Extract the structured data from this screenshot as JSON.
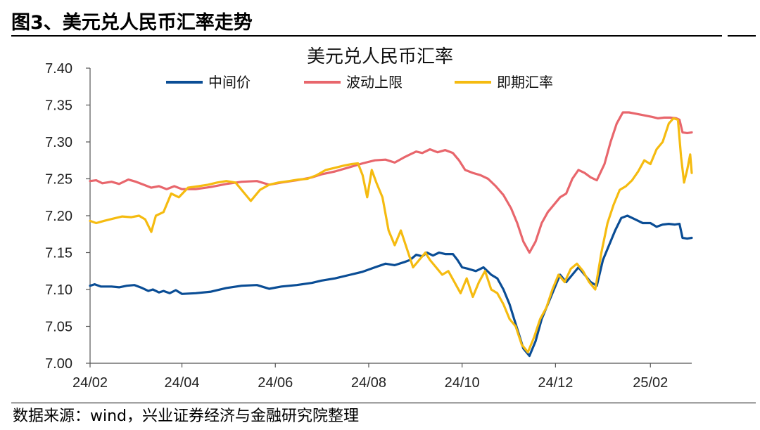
{
  "figure": {
    "title": "图3、美元兑人民币汇率走势",
    "source": "数据来源：wind，兴业证券经济与金融研究院整理"
  },
  "colors": {
    "midpoint": "#0a4d95",
    "band_upper": "#e8666c",
    "spot": "#f5bb10",
    "axis": "#555555"
  },
  "chart_data": {
    "type": "line",
    "title": "美元兑人民币汇率",
    "xlabel": "",
    "ylabel": "",
    "ylim": [
      7.0,
      7.4
    ],
    "yticks": [
      "7.40",
      "7.35",
      "7.30",
      "7.25",
      "7.20",
      "7.15",
      "7.10",
      "7.05",
      "7.00"
    ],
    "xticks": [
      "24/02",
      "24/04",
      "24/06",
      "24/08",
      "24/10",
      "24/12",
      "25/02"
    ],
    "xtick_dates": [
      "2024-02-01",
      "2024-04-01",
      "2024-06-01",
      "2024-08-01",
      "2024-10-01",
      "2024-12-01",
      "2025-02-01"
    ],
    "xrange": [
      "2024-02-01",
      "2025-02-28"
    ],
    "grid": false,
    "legend_position": "top",
    "series": [
      {
        "name": "中间价",
        "color_key": "midpoint",
        "points": [
          [
            "2024-02-01",
            7.105
          ],
          [
            "2024-02-04",
            7.107
          ],
          [
            "2024-02-08",
            7.104
          ],
          [
            "2024-02-15",
            7.104
          ],
          [
            "2024-02-20",
            7.103
          ],
          [
            "2024-02-25",
            7.105
          ],
          [
            "2024-03-01",
            7.106
          ],
          [
            "2024-03-06",
            7.102
          ],
          [
            "2024-03-10",
            7.098
          ],
          [
            "2024-03-13",
            7.1
          ],
          [
            "2024-03-17",
            7.096
          ],
          [
            "2024-03-20",
            7.098
          ],
          [
            "2024-03-24",
            7.095
          ],
          [
            "2024-03-28",
            7.099
          ],
          [
            "2024-04-01",
            7.094
          ],
          [
            "2024-04-10",
            7.095
          ],
          [
            "2024-04-20",
            7.097
          ],
          [
            "2024-04-30",
            7.102
          ],
          [
            "2024-05-10",
            7.105
          ],
          [
            "2024-05-20",
            7.106
          ],
          [
            "2024-05-28",
            7.101
          ],
          [
            "2024-06-05",
            7.104
          ],
          [
            "2024-06-15",
            7.106
          ],
          [
            "2024-06-25",
            7.109
          ],
          [
            "2024-07-01",
            7.112
          ],
          [
            "2024-07-10",
            7.115
          ],
          [
            "2024-07-20",
            7.12
          ],
          [
            "2024-07-28",
            7.124
          ],
          [
            "2024-08-05",
            7.13
          ],
          [
            "2024-08-12",
            7.135
          ],
          [
            "2024-08-18",
            7.133
          ],
          [
            "2024-08-24",
            7.137
          ],
          [
            "2024-08-28",
            7.14
          ],
          [
            "2024-09-01",
            7.147
          ],
          [
            "2024-09-05",
            7.145
          ],
          [
            "2024-09-08",
            7.15
          ],
          [
            "2024-09-12",
            7.146
          ],
          [
            "2024-09-16",
            7.15
          ],
          [
            "2024-09-20",
            7.148
          ],
          [
            "2024-09-25",
            7.148
          ],
          [
            "2024-09-28",
            7.14
          ],
          [
            "2024-10-01",
            7.13
          ],
          [
            "2024-10-05",
            7.128
          ],
          [
            "2024-10-10",
            7.125
          ],
          [
            "2024-10-15",
            7.13
          ],
          [
            "2024-10-20",
            7.12
          ],
          [
            "2024-10-24",
            7.115
          ],
          [
            "2024-10-28",
            7.1
          ],
          [
            "2024-11-01",
            7.08
          ],
          [
            "2024-11-04",
            7.06
          ],
          [
            "2024-11-07",
            7.04
          ],
          [
            "2024-11-10",
            7.02
          ],
          [
            "2024-11-14",
            7.01
          ],
          [
            "2024-11-18",
            7.03
          ],
          [
            "2024-11-22",
            7.06
          ],
          [
            "2024-11-26",
            7.08
          ],
          [
            "2024-11-30",
            7.1
          ],
          [
            "2024-12-04",
            7.12
          ],
          [
            "2024-12-08",
            7.11
          ],
          [
            "2024-12-12",
            7.12
          ],
          [
            "2024-12-16",
            7.13
          ],
          [
            "2024-12-20",
            7.12
          ],
          [
            "2024-12-24",
            7.11
          ],
          [
            "2024-12-28",
            7.105
          ],
          [
            "2025-01-01",
            7.14
          ],
          [
            "2025-01-05",
            7.16
          ],
          [
            "2025-01-09",
            7.18
          ],
          [
            "2025-01-13",
            7.197
          ],
          [
            "2025-01-17",
            7.2
          ],
          [
            "2025-01-22",
            7.195
          ],
          [
            "2025-01-27",
            7.19
          ],
          [
            "2025-02-01",
            7.19
          ],
          [
            "2025-02-05",
            7.185
          ],
          [
            "2025-02-09",
            7.188
          ],
          [
            "2025-02-13",
            7.189
          ],
          [
            "2025-02-17",
            7.188
          ],
          [
            "2025-02-20",
            7.189
          ],
          [
            "2025-02-22",
            7.17
          ],
          [
            "2025-02-25",
            7.169
          ],
          [
            "2025-02-28",
            7.17
          ]
        ]
      },
      {
        "name": "波动上限",
        "color_key": "band_upper",
        "points": [
          [
            "2024-02-01",
            7.247
          ],
          [
            "2024-02-05",
            7.248
          ],
          [
            "2024-02-09",
            7.244
          ],
          [
            "2024-02-15",
            7.246
          ],
          [
            "2024-02-20",
            7.243
          ],
          [
            "2024-02-26",
            7.249
          ],
          [
            "2024-03-02",
            7.246
          ],
          [
            "2024-03-07",
            7.242
          ],
          [
            "2024-03-12",
            7.238
          ],
          [
            "2024-03-17",
            7.24
          ],
          [
            "2024-03-22",
            7.236
          ],
          [
            "2024-03-27",
            7.24
          ],
          [
            "2024-04-01",
            7.236
          ],
          [
            "2024-04-10",
            7.236
          ],
          [
            "2024-04-20",
            7.239
          ],
          [
            "2024-04-30",
            7.243
          ],
          [
            "2024-05-10",
            7.246
          ],
          [
            "2024-05-20",
            7.247
          ],
          [
            "2024-05-28",
            7.242
          ],
          [
            "2024-06-05",
            7.245
          ],
          [
            "2024-06-15",
            7.248
          ],
          [
            "2024-06-25",
            7.252
          ],
          [
            "2024-07-01",
            7.256
          ],
          [
            "2024-07-10",
            7.26
          ],
          [
            "2024-07-20",
            7.266
          ],
          [
            "2024-07-28",
            7.271
          ],
          [
            "2024-08-05",
            7.275
          ],
          [
            "2024-08-12",
            7.276
          ],
          [
            "2024-08-18",
            7.272
          ],
          [
            "2024-08-24",
            7.279
          ],
          [
            "2024-08-28",
            7.283
          ],
          [
            "2024-09-01",
            7.287
          ],
          [
            "2024-09-05",
            7.285
          ],
          [
            "2024-09-10",
            7.29
          ],
          [
            "2024-09-15",
            7.286
          ],
          [
            "2024-09-20",
            7.289
          ],
          [
            "2024-09-25",
            7.285
          ],
          [
            "2024-09-29",
            7.275
          ],
          [
            "2024-10-03",
            7.262
          ],
          [
            "2024-10-08",
            7.258
          ],
          [
            "2024-10-13",
            7.255
          ],
          [
            "2024-10-18",
            7.25
          ],
          [
            "2024-10-23",
            7.24
          ],
          [
            "2024-10-28",
            7.228
          ],
          [
            "2024-11-02",
            7.21
          ],
          [
            "2024-11-06",
            7.19
          ],
          [
            "2024-11-10",
            7.165
          ],
          [
            "2024-11-14",
            7.15
          ],
          [
            "2024-11-18",
            7.165
          ],
          [
            "2024-11-22",
            7.19
          ],
          [
            "2024-11-26",
            7.205
          ],
          [
            "2024-11-30",
            7.215
          ],
          [
            "2024-12-04",
            7.225
          ],
          [
            "2024-12-08",
            7.23
          ],
          [
            "2024-12-12",
            7.25
          ],
          [
            "2024-12-16",
            7.262
          ],
          [
            "2024-12-20",
            7.258
          ],
          [
            "2024-12-24",
            7.252
          ],
          [
            "2024-12-28",
            7.248
          ],
          [
            "2025-01-02",
            7.27
          ],
          [
            "2025-01-06",
            7.3
          ],
          [
            "2025-01-10",
            7.325
          ],
          [
            "2025-01-14",
            7.34
          ],
          [
            "2025-01-18",
            7.34
          ],
          [
            "2025-01-23",
            7.338
          ],
          [
            "2025-01-28",
            7.336
          ],
          [
            "2025-02-02",
            7.334
          ],
          [
            "2025-02-06",
            7.332
          ],
          [
            "2025-02-10",
            7.333
          ],
          [
            "2025-02-14",
            7.333
          ],
          [
            "2025-02-18",
            7.332
          ],
          [
            "2025-02-20",
            7.33
          ],
          [
            "2025-02-22",
            7.313
          ],
          [
            "2025-02-25",
            7.312
          ],
          [
            "2025-02-28",
            7.313
          ]
        ]
      },
      {
        "name": "即期汇率",
        "color_key": "spot",
        "points": [
          [
            "2024-02-01",
            7.193
          ],
          [
            "2024-02-05",
            7.19
          ],
          [
            "2024-02-10",
            7.193
          ],
          [
            "2024-02-16",
            7.196
          ],
          [
            "2024-02-22",
            7.199
          ],
          [
            "2024-02-28",
            7.198
          ],
          [
            "2024-03-04",
            7.2
          ],
          [
            "2024-03-08",
            7.195
          ],
          [
            "2024-03-12",
            7.178
          ],
          [
            "2024-03-15",
            7.2
          ],
          [
            "2024-03-20",
            7.205
          ],
          [
            "2024-03-25",
            7.23
          ],
          [
            "2024-03-30",
            7.225
          ],
          [
            "2024-04-05",
            7.238
          ],
          [
            "2024-04-12",
            7.24
          ],
          [
            "2024-04-18",
            7.242
          ],
          [
            "2024-04-24",
            7.245
          ],
          [
            "2024-04-30",
            7.247
          ],
          [
            "2024-05-06",
            7.245
          ],
          [
            "2024-05-12",
            7.23
          ],
          [
            "2024-05-16",
            7.22
          ],
          [
            "2024-05-22",
            7.235
          ],
          [
            "2024-05-28",
            7.242
          ],
          [
            "2024-06-03",
            7.245
          ],
          [
            "2024-06-10",
            7.247
          ],
          [
            "2024-06-16",
            7.249
          ],
          [
            "2024-06-22",
            7.25
          ],
          [
            "2024-06-28",
            7.255
          ],
          [
            "2024-07-04",
            7.262
          ],
          [
            "2024-07-10",
            7.265
          ],
          [
            "2024-07-16",
            7.268
          ],
          [
            "2024-07-21",
            7.27
          ],
          [
            "2024-07-25",
            7.271
          ],
          [
            "2024-07-28",
            7.255
          ],
          [
            "2024-07-31",
            7.225
          ],
          [
            "2024-08-03",
            7.262
          ],
          [
            "2024-08-06",
            7.245
          ],
          [
            "2024-08-10",
            7.225
          ],
          [
            "2024-08-14",
            7.18
          ],
          [
            "2024-08-18",
            7.16
          ],
          [
            "2024-08-22",
            7.18
          ],
          [
            "2024-08-26",
            7.155
          ],
          [
            "2024-08-30",
            7.13
          ],
          [
            "2024-09-03",
            7.14
          ],
          [
            "2024-09-07",
            7.15
          ],
          [
            "2024-09-10",
            7.14
          ],
          [
            "2024-09-14",
            7.13
          ],
          [
            "2024-09-18",
            7.12
          ],
          [
            "2024-09-22",
            7.125
          ],
          [
            "2024-09-26",
            7.11
          ],
          [
            "2024-09-30",
            7.095
          ],
          [
            "2024-10-04",
            7.115
          ],
          [
            "2024-10-08",
            7.09
          ],
          [
            "2024-10-12",
            7.11
          ],
          [
            "2024-10-16",
            7.125
          ],
          [
            "2024-10-20",
            7.1
          ],
          [
            "2024-10-24",
            7.095
          ],
          [
            "2024-10-28",
            7.08
          ],
          [
            "2024-11-01",
            7.06
          ],
          [
            "2024-11-05",
            7.05
          ],
          [
            "2024-11-09",
            7.025
          ],
          [
            "2024-11-13",
            7.015
          ],
          [
            "2024-11-17",
            7.035
          ],
          [
            "2024-11-21",
            7.06
          ],
          [
            "2024-11-25",
            7.075
          ],
          [
            "2024-11-29",
            7.1
          ],
          [
            "2024-12-03",
            7.12
          ],
          [
            "2024-12-07",
            7.11
          ],
          [
            "2024-12-11",
            7.128
          ],
          [
            "2024-12-15",
            7.135
          ],
          [
            "2024-12-19",
            7.125
          ],
          [
            "2024-12-23",
            7.11
          ],
          [
            "2024-12-27",
            7.1
          ],
          [
            "2024-12-31",
            7.15
          ],
          [
            "2025-01-04",
            7.19
          ],
          [
            "2025-01-08",
            7.215
          ],
          [
            "2025-01-12",
            7.235
          ],
          [
            "2025-01-16",
            7.24
          ],
          [
            "2025-01-20",
            7.248
          ],
          [
            "2025-01-24",
            7.26
          ],
          [
            "2025-01-28",
            7.275
          ],
          [
            "2025-02-01",
            7.27
          ],
          [
            "2025-02-05",
            7.29
          ],
          [
            "2025-02-09",
            7.3
          ],
          [
            "2025-02-13",
            7.325
          ],
          [
            "2025-02-16",
            7.332
          ],
          [
            "2025-02-19",
            7.33
          ],
          [
            "2025-02-21",
            7.28
          ],
          [
            "2025-02-23",
            7.245
          ],
          [
            "2025-02-25",
            7.262
          ],
          [
            "2025-02-27",
            7.283
          ],
          [
            "2025-02-28",
            7.258
          ]
        ]
      }
    ]
  }
}
